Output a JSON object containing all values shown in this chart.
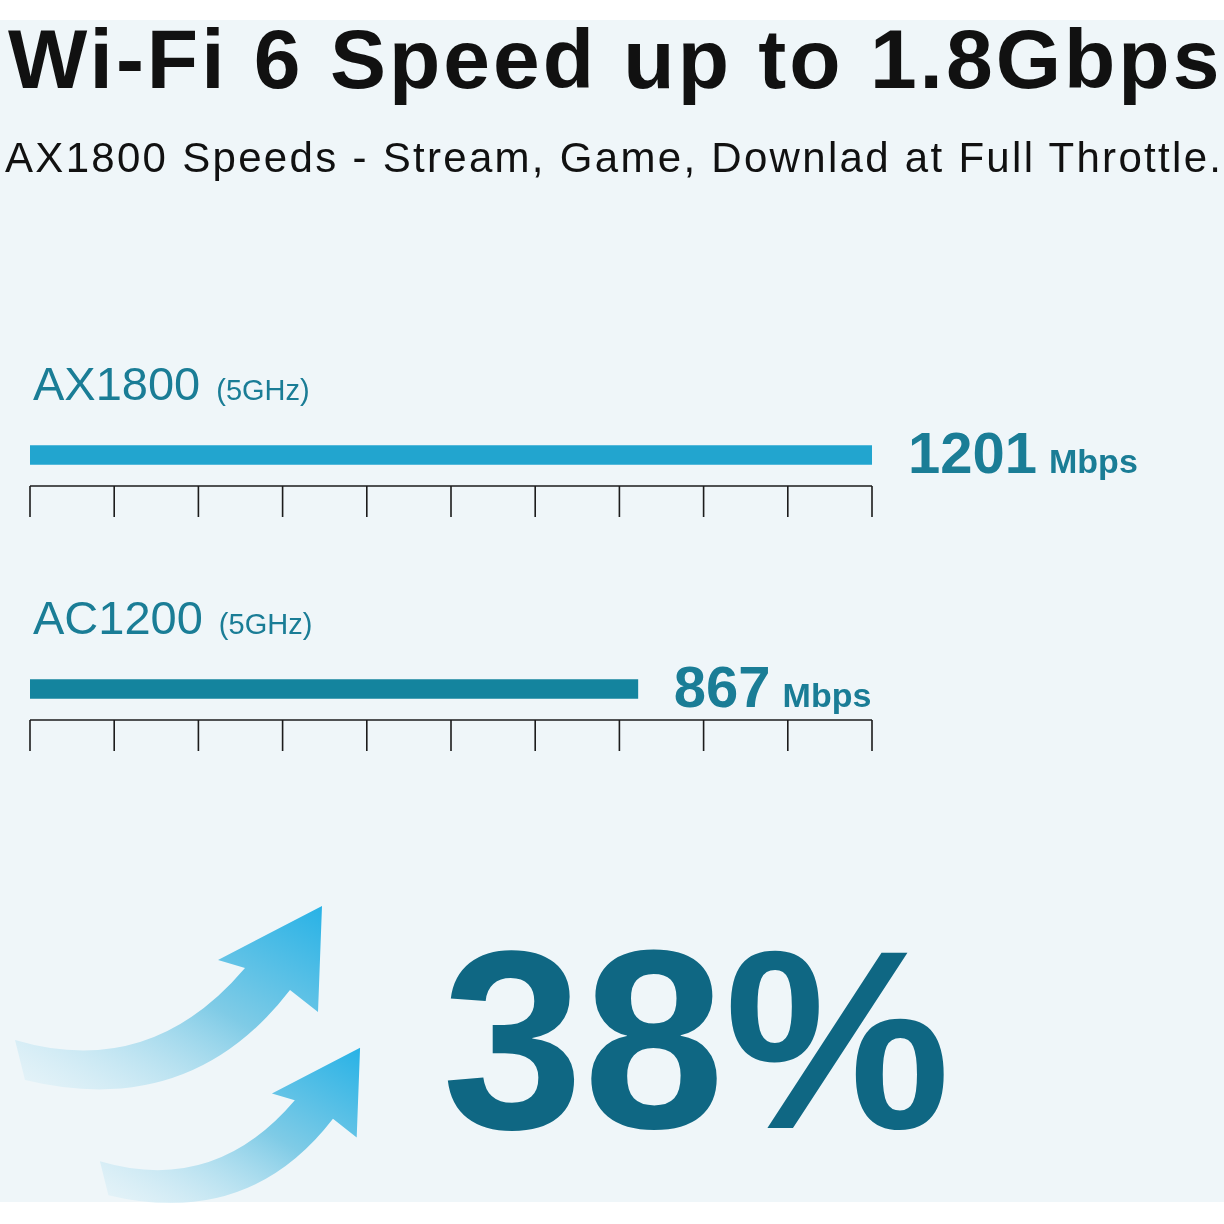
{
  "chart_data": {
    "type": "bar",
    "orientation": "horizontal",
    "title": "Wi-Fi 6 Speed up to 1.8Gbps",
    "subtitle": "AX1800 Speeds - Stream, Game, Downlad at Full Throttle.",
    "categories": [
      "AX1800 (5GHz)",
      "AC1200 (5GHz)"
    ],
    "values": [
      1201,
      867
    ],
    "colors": [
      "#22a5cf",
      "#14849e"
    ],
    "value_labels": [
      "1201 Mbps",
      "867 Mbps"
    ],
    "xlim": [
      0,
      1201
    ],
    "tick_labels": "y",
    "legend": false,
    "annotations": [
      "38%"
    ]
  }
}
